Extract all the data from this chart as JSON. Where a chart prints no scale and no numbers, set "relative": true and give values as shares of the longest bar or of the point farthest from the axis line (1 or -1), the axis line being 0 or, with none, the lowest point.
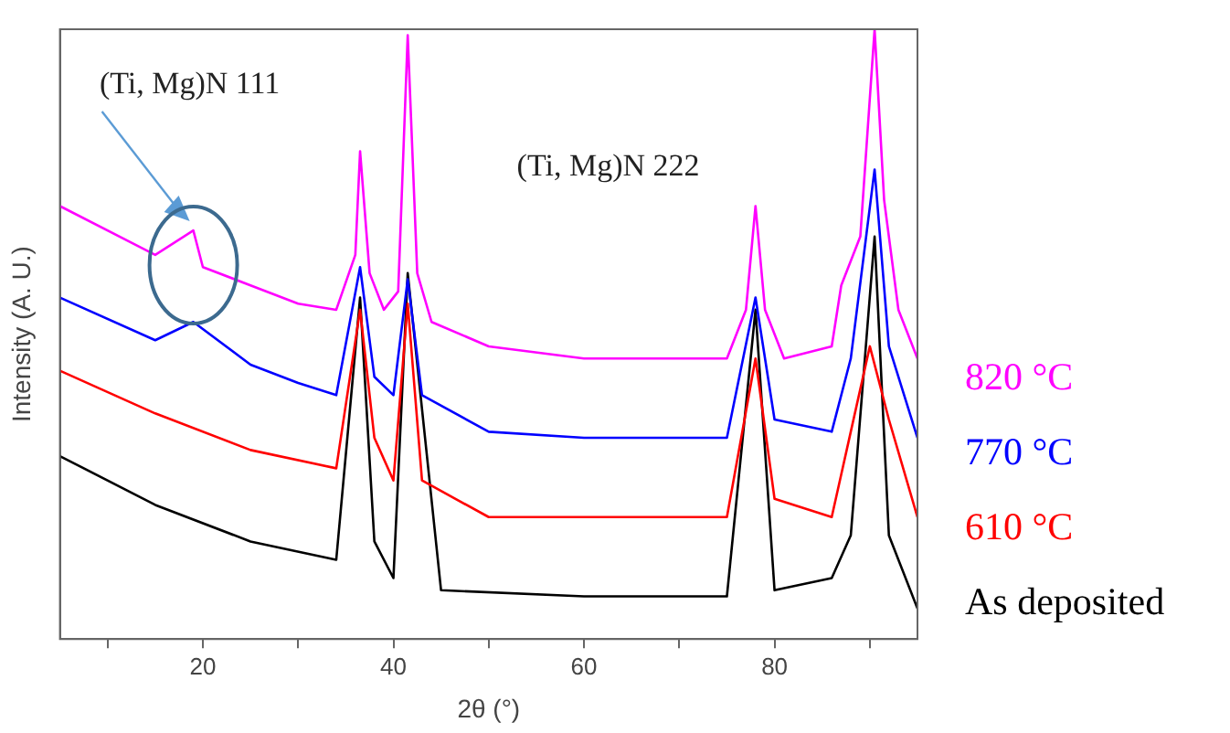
{
  "chart_data": {
    "type": "line",
    "xlabel": "2θ (°)",
    "ylabel": "Intensity (A. U.)",
    "relative": true,
    "xlim": [
      5,
      95
    ],
    "xticks": [
      {
        "value": 10,
        "label": null
      },
      20,
      {
        "value": 30,
        "label": null
      },
      40,
      {
        "value": 50,
        "label": null
      },
      60,
      {
        "value": 70,
        "label": null
      },
      80,
      {
        "value": 90,
        "label": null
      }
    ],
    "grid": false,
    "legend": "right",
    "marker": "none",
    "line_style": "solid",
    "annotations": [
      "(Ti, Mg)N 111",
      "(Ti, Mg)N 222"
    ],
    "series": [
      {
        "name": "820 °C",
        "color": "#ff00ff",
        "x": [
          5,
          15,
          19,
          20,
          25,
          30,
          34,
          36,
          36.5,
          37.5,
          39,
          40.5,
          41.5,
          42.5,
          44,
          50,
          60,
          70,
          75,
          77,
          78,
          79,
          81,
          86,
          87,
          89,
          90.5,
          91.5,
          93,
          95
        ],
        "values": [
          0.71,
          0.63,
          0.67,
          0.61,
          0.58,
          0.55,
          0.54,
          0.63,
          0.8,
          0.6,
          0.54,
          0.57,
          0.99,
          0.6,
          0.52,
          0.48,
          0.46,
          0.46,
          0.46,
          0.54,
          0.71,
          0.54,
          0.46,
          0.48,
          0.58,
          0.66,
          1.0,
          0.72,
          0.54,
          0.46
        ]
      },
      {
        "name": "770 °C",
        "color": "#0000ff",
        "x": [
          5,
          15,
          19,
          25,
          30,
          34,
          36.5,
          38,
          40,
          41.5,
          43,
          50,
          60,
          75,
          78,
          80,
          86,
          88,
          90.5,
          92,
          95
        ],
        "values": [
          0.56,
          0.49,
          0.52,
          0.45,
          0.42,
          0.4,
          0.61,
          0.43,
          0.4,
          0.59,
          0.4,
          0.34,
          0.33,
          0.33,
          0.56,
          0.36,
          0.34,
          0.46,
          0.77,
          0.48,
          0.33
        ]
      },
      {
        "name": "610 °C",
        "color": "#ff0000",
        "x": [
          5,
          15,
          25,
          34,
          36.5,
          38,
          40,
          41.5,
          43,
          50,
          60,
          75,
          78,
          80,
          86,
          88,
          90,
          92,
          95
        ],
        "values": [
          0.44,
          0.37,
          0.31,
          0.28,
          0.54,
          0.33,
          0.26,
          0.55,
          0.26,
          0.2,
          0.2,
          0.2,
          0.46,
          0.23,
          0.2,
          0.34,
          0.48,
          0.36,
          0.2
        ]
      },
      {
        "name": "As deposited",
        "color": "#000000",
        "x": [
          5,
          15,
          25,
          34,
          36.5,
          38,
          40,
          41.5,
          45,
          60,
          75,
          78,
          80,
          86,
          88,
          90.5,
          92,
          95
        ],
        "values": [
          0.3,
          0.22,
          0.16,
          0.13,
          0.56,
          0.16,
          0.1,
          0.6,
          0.08,
          0.07,
          0.07,
          0.54,
          0.08,
          0.1,
          0.17,
          0.66,
          0.17,
          0.05
        ]
      }
    ]
  }
}
